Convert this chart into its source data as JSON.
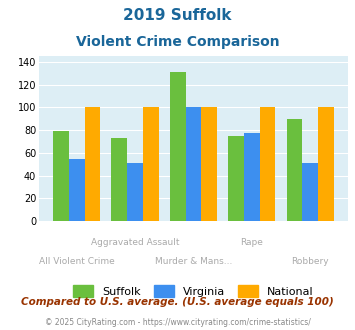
{
  "title_line1": "2019 Suffolk",
  "title_line2": "Violent Crime Comparison",
  "suffolk": [
    79,
    73,
    131,
    75,
    90
  ],
  "virginia": [
    55,
    51,
    100,
    77,
    51
  ],
  "national": [
    100,
    100,
    100,
    100,
    100
  ],
  "color_suffolk": "#6abf3e",
  "color_virginia": "#3d8fef",
  "color_national": "#ffaa00",
  "ylim": [
    0,
    145
  ],
  "yticks": [
    0,
    20,
    40,
    60,
    80,
    100,
    120,
    140
  ],
  "xlabel_top": [
    "",
    "Aggravated Assault",
    "",
    "Rape",
    ""
  ],
  "xlabel_bottom": [
    "All Violent Crime",
    "Murder & Mans...",
    "",
    "",
    "Robbery"
  ],
  "note": "Compared to U.S. average. (U.S. average equals 100)",
  "footer": "© 2025 CityRating.com - https://www.cityrating.com/crime-statistics/",
  "background_color": "#ddeef5",
  "title_color": "#1a6699",
  "note_color": "#993300",
  "footer_color": "#888888",
  "label_color": "#aaaaaa"
}
